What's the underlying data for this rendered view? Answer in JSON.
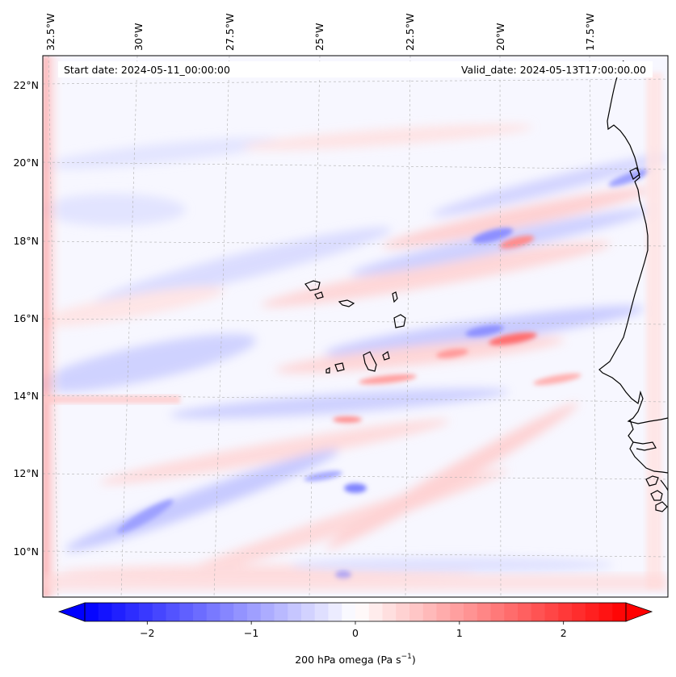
{
  "map": {
    "start_date": "Start date: 2024-05-11_00:00:00",
    "valid_date": "Valid_date: 2024-05-13T17:00:00.00",
    "longitude_labels": [
      {
        "label": "32.5°W",
        "lon": -32.5
      },
      {
        "label": "30°W",
        "lon": -30
      },
      {
        "label": "27.5°W",
        "lon": -27.5
      },
      {
        "label": "25°W",
        "lon": -25
      },
      {
        "label": "22.5°W",
        "lon": -22.5
      },
      {
        "label": "20°W",
        "lon": -20
      },
      {
        "label": "17.5°W",
        "lon": -17.5
      }
    ],
    "latitude_labels": [
      {
        "label": "22°N",
        "lat": 22
      },
      {
        "label": "20°N",
        "lat": 20
      },
      {
        "label": "18°N",
        "lat": 18
      },
      {
        "label": "16°N",
        "lat": 16
      },
      {
        "label": "14°N",
        "lat": 14
      },
      {
        "label": "12°N",
        "lat": 12
      },
      {
        "label": "10°N",
        "lat": 10
      }
    ],
    "field_description": "200 hPa vertical velocity (omega) shaded field",
    "colors": {
      "positive": "#ff0000",
      "negative": "#0000ff",
      "neutral": "#ffffff",
      "coast": "#000000",
      "grid": "#b0b0b0"
    }
  },
  "colorbar": {
    "label_main": "200 hPa omega (Pa s",
    "label_sup": "−1",
    "label_close": ")",
    "vmin": -2.6,
    "vmax": 2.6,
    "ticks": [
      {
        "value": -2,
        "label": "−2"
      },
      {
        "value": -1,
        "label": "−1"
      },
      {
        "value": 0,
        "label": "0"
      },
      {
        "value": 1,
        "label": "1"
      },
      {
        "value": 2,
        "label": "2"
      }
    ],
    "levels": 40
  }
}
